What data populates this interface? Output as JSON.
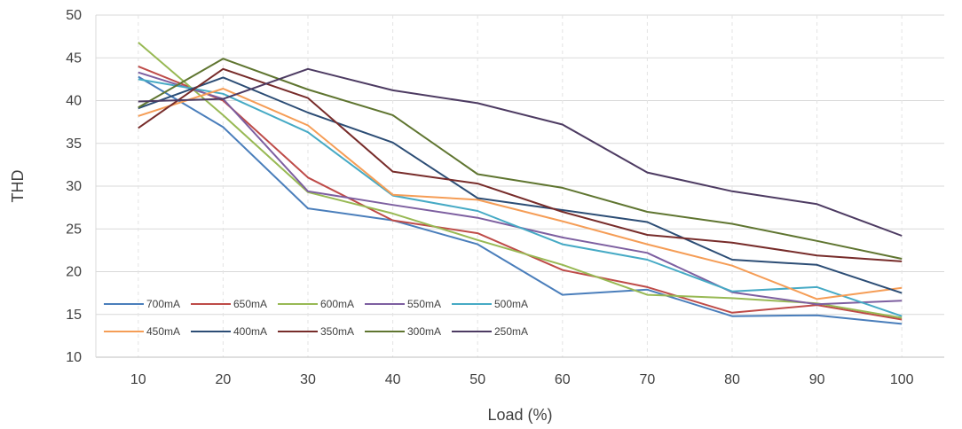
{
  "chart_data": {
    "type": "line",
    "title": "",
    "xlabel": "Load (%)",
    "ylabel": "THD",
    "x": [
      10,
      20,
      30,
      40,
      50,
      60,
      70,
      80,
      90,
      100
    ],
    "ylim": [
      10,
      50
    ],
    "yticks": [
      10,
      15,
      20,
      25,
      30,
      35,
      40,
      45,
      50
    ],
    "grid": {
      "horizontal": "solid",
      "vertical": "dashed"
    },
    "legend_position": "bottom-left inside plot",
    "series": [
      {
        "name": "700mA",
        "color": "#4a7ebb",
        "values": [
          42.8,
          36.9,
          27.4,
          26.0,
          23.2,
          17.3,
          17.9,
          14.8,
          14.9,
          13.9
        ]
      },
      {
        "name": "650mA",
        "color": "#be4b48",
        "values": [
          44.0,
          40.0,
          31.0,
          26.0,
          24.5,
          20.2,
          18.2,
          15.2,
          16.1,
          14.4
        ]
      },
      {
        "name": "600mA",
        "color": "#98b954",
        "values": [
          46.8,
          38.3,
          29.3,
          26.8,
          23.7,
          20.8,
          17.3,
          16.9,
          16.3,
          14.6
        ]
      },
      {
        "name": "550mA",
        "color": "#7d5fa0",
        "values": [
          43.3,
          40.2,
          29.4,
          27.8,
          26.3,
          24.0,
          22.2,
          17.6,
          16.2,
          16.6
        ]
      },
      {
        "name": "500mA",
        "color": "#46aac5",
        "values": [
          42.5,
          40.8,
          36.3,
          28.9,
          27.1,
          23.2,
          21.4,
          17.7,
          18.2,
          14.8
        ]
      },
      {
        "name": "450mA",
        "color": "#f59d56",
        "values": [
          38.2,
          41.4,
          37.1,
          29.0,
          28.4,
          25.9,
          23.2,
          20.7,
          16.8,
          18.1
        ]
      },
      {
        "name": "400mA",
        "color": "#2c4d75",
        "values": [
          39.1,
          42.7,
          38.6,
          35.1,
          28.6,
          27.2,
          25.8,
          21.4,
          20.8,
          17.5
        ]
      },
      {
        "name": "350mA",
        "color": "#772c2a",
        "values": [
          36.8,
          43.7,
          40.3,
          31.7,
          30.3,
          27.0,
          24.3,
          23.4,
          21.9,
          21.2
        ]
      },
      {
        "name": "300mA",
        "color": "#5f7530",
        "values": [
          39.2,
          44.9,
          41.3,
          38.3,
          31.4,
          29.8,
          27.0,
          25.6,
          23.6,
          21.5
        ]
      },
      {
        "name": "250mA",
        "color": "#4d3b62",
        "values": [
          39.9,
          40.2,
          43.7,
          41.2,
          39.7,
          37.2,
          31.6,
          29.4,
          27.9,
          24.2
        ]
      }
    ]
  }
}
